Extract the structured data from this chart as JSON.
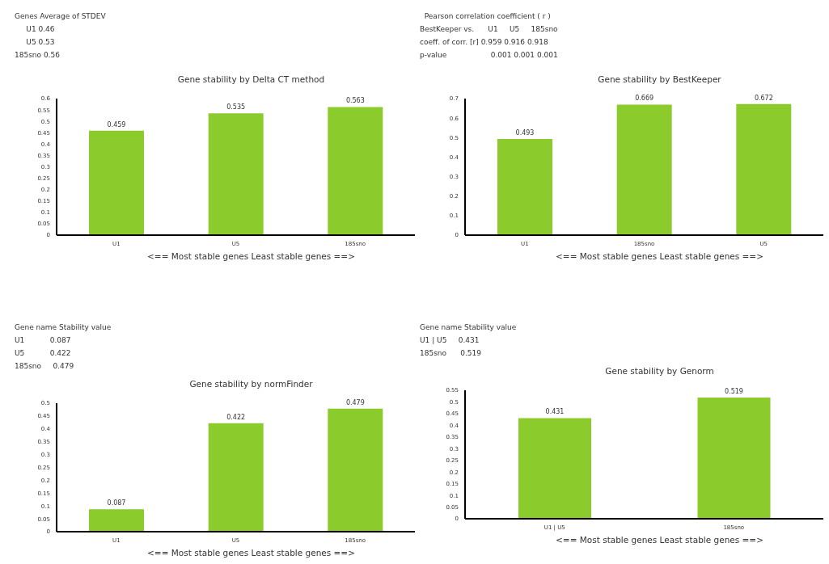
{
  "chart_data": [
    {
      "type": "bar",
      "title": "Gene stability by Delta CT method",
      "xlabel": "<== Most stable genes    Least stable genes ==>",
      "annotations": [
        "Genes Average of STDEV",
        "     U1 0.46",
        "     U5 0.53",
        "185sno 0.56"
      ],
      "categories": [
        "U1",
        "U5",
        "185sno"
      ],
      "values": [
        0.459,
        0.535,
        0.563
      ],
      "color": "#8ccb2c",
      "ylim": [
        0,
        0.6
      ],
      "yticks": [
        0,
        0.05,
        0.1,
        0.15,
        0.2,
        0.25,
        0.3,
        0.35,
        0.4,
        0.45,
        0.5,
        0.55,
        0.6
      ],
      "data_labels": true,
      "grid": false,
      "legend": false
    },
    {
      "type": "bar",
      "title": "Gene stability by BestKeeper",
      "xlabel": "<== Most stable genes    Least stable genes ==>",
      "annotations": [
        "  Pearson correlation coefficient ( r )",
        "BestKeeper vs.      U1     U5     185sno",
        "coeff. of corr. [r] 0.959 0.916 0.918",
        "p-value                   0.001 0.001 0.001"
      ],
      "categories": [
        "U1",
        "185sno",
        "U5"
      ],
      "values": [
        0.493,
        0.669,
        0.672
      ],
      "color": "#8ccb2c",
      "ylim": [
        0,
        0.7
      ],
      "yticks": [
        0,
        0.1,
        0.2,
        0.3,
        0.4,
        0.5,
        0.6,
        0.7
      ],
      "data_labels": true,
      "grid": false,
      "legend": false
    },
    {
      "type": "bar",
      "title": "Gene stability by normFinder",
      "xlabel": "<== Most stable genes    Least stable genes ==>",
      "annotations": [
        "Gene name Stability value",
        "U1           0.087",
        "U5           0.422",
        "185sno     0.479"
      ],
      "categories": [
        "U1",
        "U5",
        "185sno"
      ],
      "values": [
        0.087,
        0.422,
        0.479
      ],
      "color": "#8ccb2c",
      "ylim": [
        0,
        0.5
      ],
      "yticks": [
        0,
        0.05,
        0.1,
        0.15,
        0.2,
        0.25,
        0.3,
        0.35,
        0.4,
        0.45,
        0.5
      ],
      "data_labels": true,
      "grid": false,
      "legend": false
    },
    {
      "type": "bar",
      "title": "Gene stability by Genorm",
      "xlabel": "<== Most stable genes    Least stable genes ==>",
      "annotations": [
        "Gene name Stability value",
        "U1 | U5     0.431",
        "185sno      0.519"
      ],
      "categories": [
        "U1 | U5",
        "185sno"
      ],
      "values": [
        0.431,
        0.519
      ],
      "color": "#8ccb2c",
      "ylim": [
        0,
        0.55
      ],
      "yticks": [
        0,
        0.05,
        0.1,
        0.15,
        0.2,
        0.25,
        0.3,
        0.35,
        0.4,
        0.45,
        0.5,
        0.55
      ],
      "data_labels": true,
      "grid": false,
      "legend": false
    }
  ]
}
